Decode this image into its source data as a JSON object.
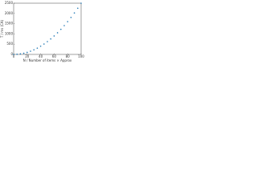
{
  "chart_data": {
    "type": "scatter",
    "xlabel": "N / Number of items × Approx",
    "ylabel": "T / ms (CA)",
    "x": [
      0,
      5,
      10,
      15,
      20,
      25,
      30,
      35,
      40,
      45,
      50,
      55,
      60,
      65,
      70,
      75,
      80,
      85,
      90,
      95,
      100
    ],
    "values": [
      0,
      6,
      25,
      56,
      100,
      156,
      225,
      306,
      400,
      506,
      625,
      756,
      900,
      1056,
      1225,
      1406,
      1600,
      1806,
      2025,
      2256,
      2500
    ],
    "color": "#1f77b4",
    "xlim": [
      0,
      100
    ],
    "xticks": [
      0,
      20,
      40,
      60,
      80,
      100
    ],
    "ylim": [
      0,
      2500
    ],
    "yticks": [
      0,
      500,
      1000,
      1500,
      2000,
      2500
    ]
  }
}
